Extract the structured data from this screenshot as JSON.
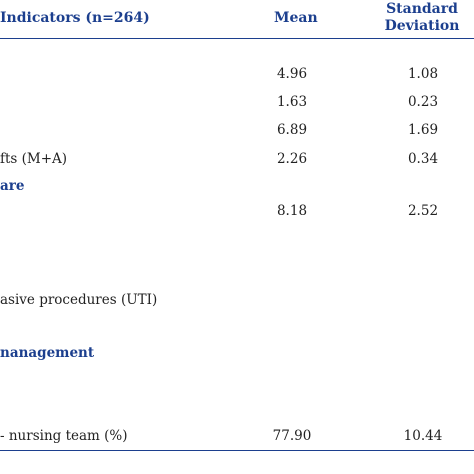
{
  "header": {
    "indicators": "Indicators (n=264)",
    "mean": "Mean",
    "sd_line1": "Standard",
    "sd_line2": "Deviation"
  },
  "rows": [
    {
      "label": "",
      "mean": "4.96",
      "sd": "1.08"
    },
    {
      "label": "",
      "mean": "1.63",
      "sd": "0.23"
    },
    {
      "label": "",
      "mean": "6.89",
      "sd": "1.69"
    },
    {
      "label": "fts (M+A)",
      "mean": "2.26",
      "sd": "0.34"
    },
    {
      "label": "",
      "mean": "8.18",
      "sd": "2.52"
    },
    {
      "label": "asive procedures (UTI)",
      "mean": "",
      "sd": ""
    },
    {
      "label": "- nursing team (%)",
      "mean": "77.90",
      "sd": "10.44"
    }
  ],
  "sections": [
    {
      "label": "are"
    },
    {
      "label": "nanagement"
    }
  ],
  "colors": {
    "header_blue": "#1c3f8e",
    "text": "#222222"
  }
}
